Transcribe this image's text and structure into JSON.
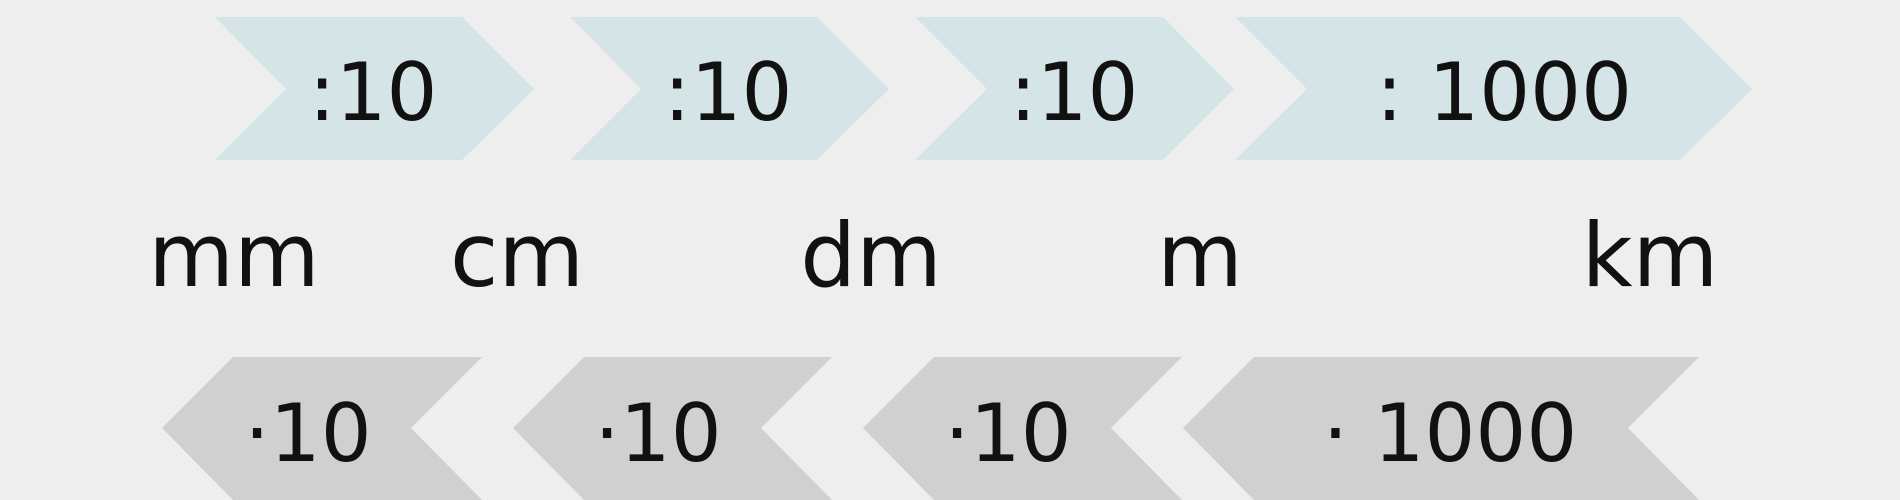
{
  "colors": {
    "background": "#eeeeee",
    "divide_arrow": "#d5e4e7",
    "multiply_arrow": "#d0d0d0",
    "text": "#111111"
  },
  "units": [
    "mm",
    "cm",
    "dm",
    "m",
    "km"
  ],
  "divide_steps": [
    ":10",
    ":10",
    ":10",
    ": 1000"
  ],
  "multiply_steps": [
    "·10",
    "·10",
    "·10",
    "· 1000"
  ]
}
